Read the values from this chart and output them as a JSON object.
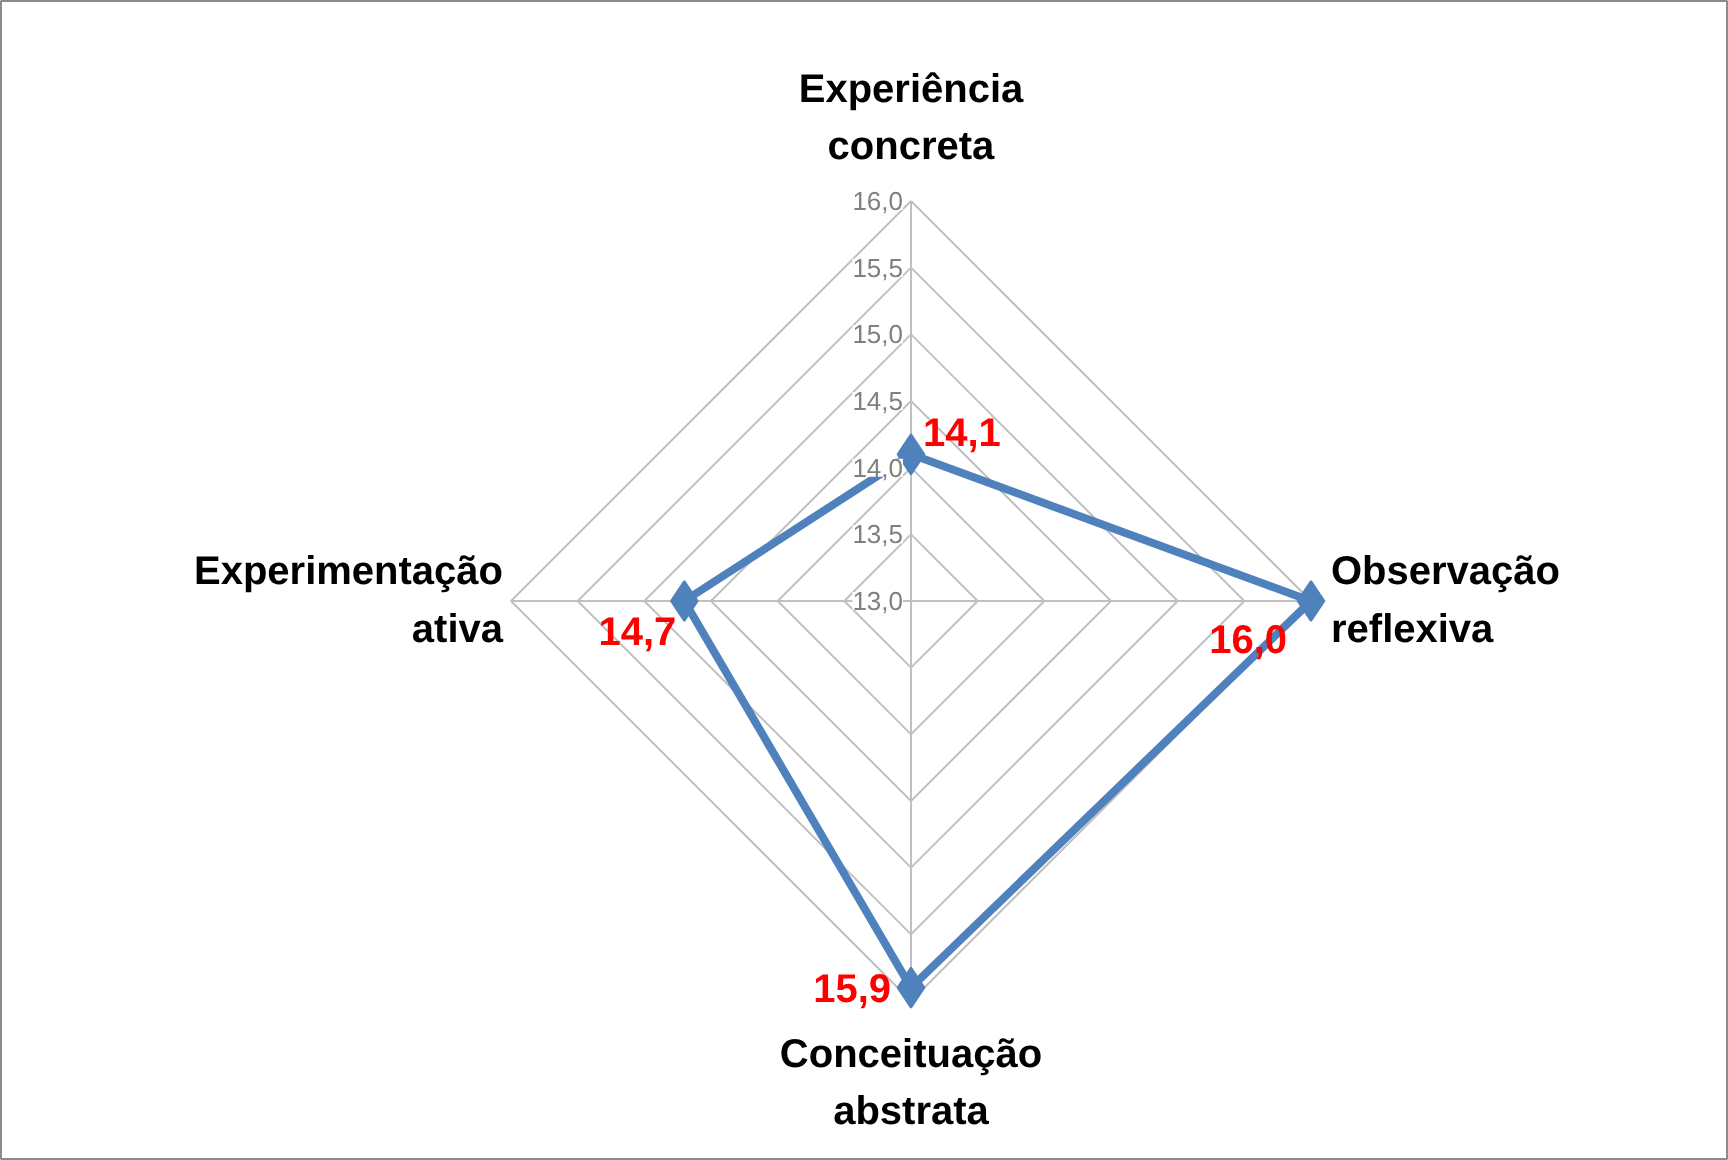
{
  "chart_data": {
    "type": "radar",
    "categories": [
      "Experiência concreta",
      "Observação reflexiva",
      "Conceituação abstrata",
      "Experimentação ativa"
    ],
    "series": [
      {
        "color": "#4f81bd",
        "values": [
          14.1,
          16.0,
          15.9,
          14.7
        ],
        "value_labels": [
          "14,1",
          "16,0",
          "15,9",
          "14,7"
        ]
      }
    ],
    "ylim": [
      13,
      16
    ],
    "yticks": [
      {
        "value": 13,
        "label": "13,0"
      },
      {
        "value": 13.5,
        "label": "13,5"
      },
      {
        "value": 14,
        "label": "14,0"
      },
      {
        "value": 14.5,
        "label": "14,5"
      },
      {
        "value": 15,
        "label": "15,0"
      },
      {
        "value": 15.5,
        "label": "15,5"
      },
      {
        "value": 16,
        "label": "16,0"
      }
    ],
    "grid": true,
    "marker": "diamond"
  }
}
